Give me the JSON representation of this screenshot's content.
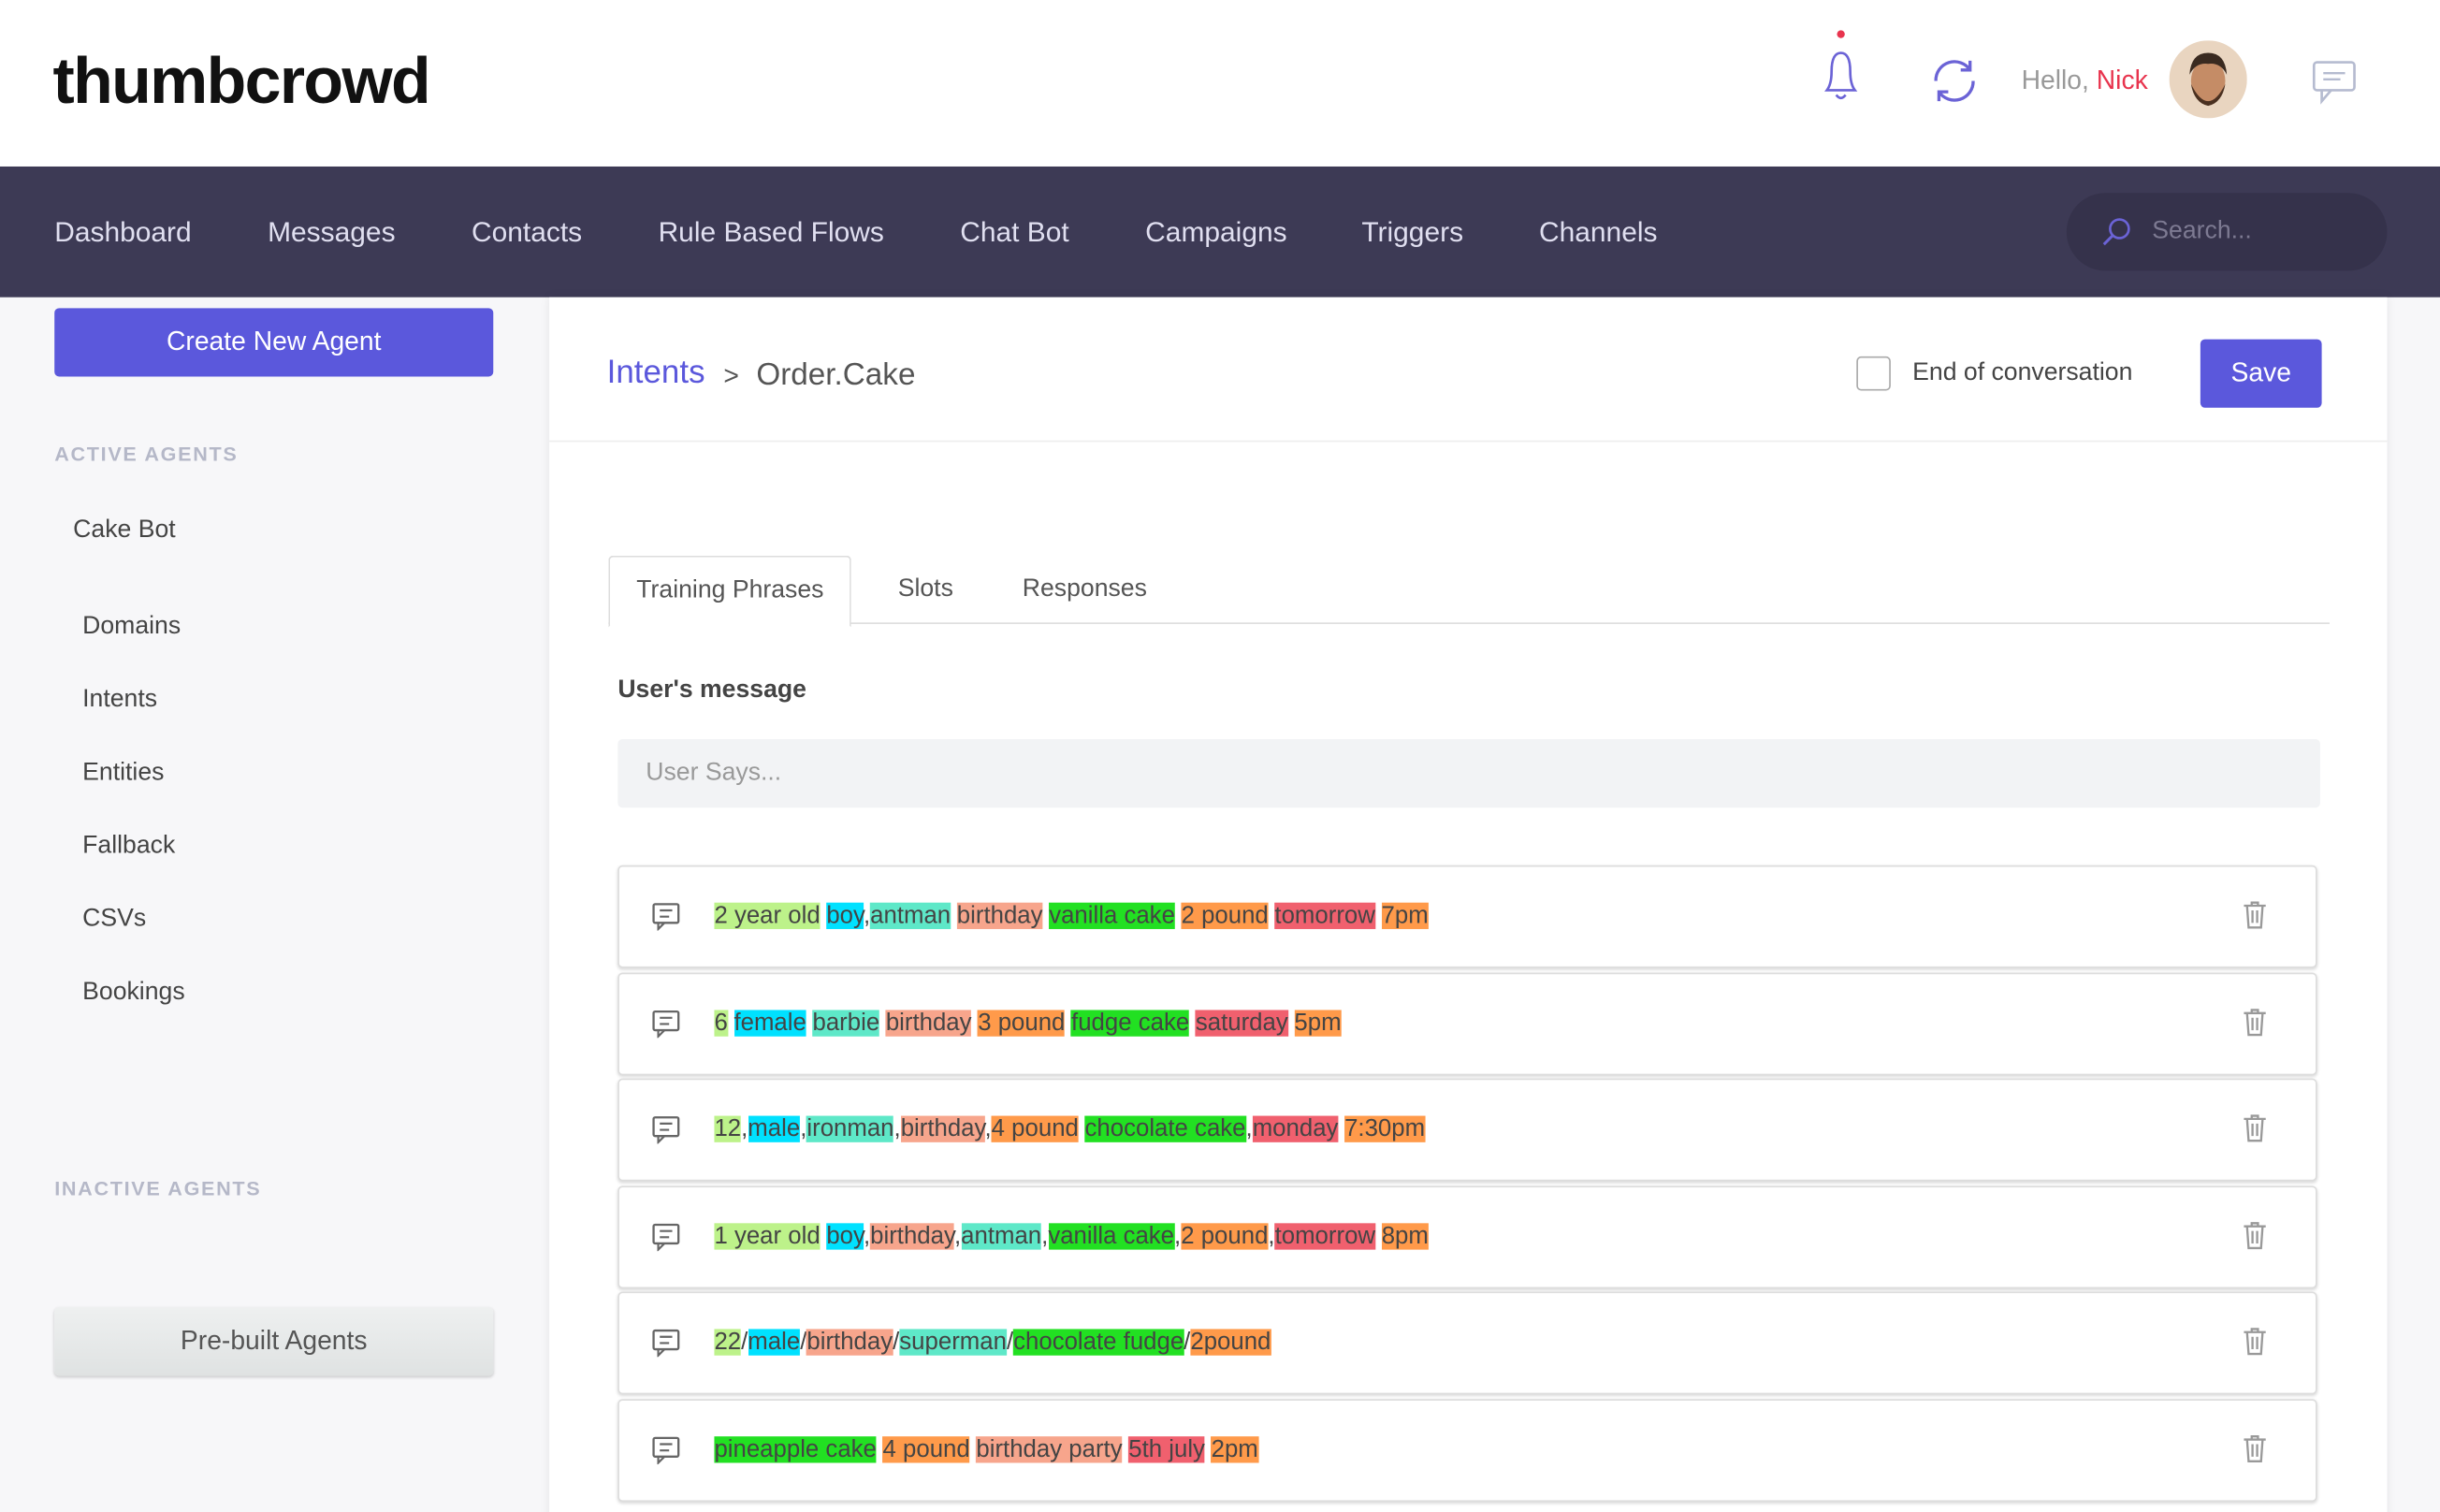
{
  "header": {
    "logo": "thumbcrowd",
    "greeting": "Hello,",
    "user": "Nick"
  },
  "nav": {
    "items": [
      "Dashboard",
      "Messages",
      "Contacts",
      "Rule Based Flows",
      "Chat Bot",
      "Campaigns",
      "Triggers",
      "Channels"
    ],
    "search_placeholder": "Search..."
  },
  "sidebar": {
    "create_button": "Create New Agent",
    "active_heading": "ACTIVE AGENTS",
    "agent": "Cake Bot",
    "menu": [
      "Domains",
      "Intents",
      "Entities",
      "Fallback",
      "CSVs",
      "Bookings"
    ],
    "inactive_heading": "INACTIVE AGENTS",
    "prebuilt_button": "Pre-built Agents"
  },
  "editor": {
    "breadcrumb_root": "Intents",
    "breadcrumb_separator": ">",
    "breadcrumb_current": "Order.Cake",
    "end_label": "End of conversation",
    "save": "Save",
    "tabs": [
      "Training Phrases",
      "Slots",
      "Responses"
    ],
    "active_tab": 0,
    "section_label": "User's message",
    "input_placeholder": "User Says...",
    "phrases": [
      {
        "segments": [
          {
            "text": "2 year old",
            "color": "#bdf28a"
          },
          {
            "text": "boy",
            "color": "#00e1ff",
            "sep": ","
          },
          {
            "text": "antman",
            "color": "#5ee8c8"
          },
          {
            "text": "birthday",
            "color": "#f7a58c"
          },
          {
            "text": "vanilla cake",
            "color": "#22e022"
          },
          {
            "text": "2 pound",
            "color": "#ff9a4a"
          },
          {
            "text": "tomorrow",
            "color": "#f0606e"
          },
          {
            "text": "7pm",
            "color": "#ff9a4a"
          }
        ]
      },
      {
        "segments": [
          {
            "text": "6",
            "color": "#bdf28a"
          },
          {
            "text": "female",
            "color": "#00e1ff"
          },
          {
            "text": "barbie",
            "color": "#5ee8c8"
          },
          {
            "text": "birthday",
            "color": "#f7a58c"
          },
          {
            "text": "3 pound",
            "color": "#ff9a4a"
          },
          {
            "text": "fudge cake",
            "color": "#22e022"
          },
          {
            "text": "saturday",
            "color": "#f0606e"
          },
          {
            "text": "5pm",
            "color": "#ff9a4a"
          }
        ]
      },
      {
        "segments": [
          {
            "text": "12",
            "color": "#bdf28a",
            "sep": ","
          },
          {
            "text": "male",
            "color": "#00e1ff",
            "sep": ","
          },
          {
            "text": "ironman",
            "color": "#5ee8c8",
            "sep": ","
          },
          {
            "text": "birthday",
            "color": "#f7a58c",
            "sep": ","
          },
          {
            "text": "4 pound",
            "color": "#ff9a4a"
          },
          {
            "text": "chocolate cake",
            "color": "#22e022",
            "sep": ","
          },
          {
            "text": "monday",
            "color": "#f0606e"
          },
          {
            "text": "7:30pm",
            "color": "#ff9a4a"
          }
        ]
      },
      {
        "segments": [
          {
            "text": "1 year old",
            "color": "#bdf28a"
          },
          {
            "text": "boy",
            "color": "#00e1ff",
            "sep": ","
          },
          {
            "text": "birthday",
            "color": "#f7a58c",
            "sep": ","
          },
          {
            "text": "antman",
            "color": "#5ee8c8",
            "sep": ","
          },
          {
            "text": "vanilla cake",
            "color": "#22e022",
            "sep": ","
          },
          {
            "text": "2 pound",
            "color": "#ff9a4a",
            "sep": ","
          },
          {
            "text": "tomorrow",
            "color": "#f0606e"
          },
          {
            "text": "8pm",
            "color": "#ff9a4a"
          }
        ]
      },
      {
        "segments": [
          {
            "text": "22",
            "color": "#bdf28a",
            "sep": "/"
          },
          {
            "text": "male",
            "color": "#00e1ff",
            "sep": "/"
          },
          {
            "text": "birthday",
            "color": "#f7a58c",
            "sep": "/"
          },
          {
            "text": "superman",
            "color": "#5ee8c8",
            "sep": "/"
          },
          {
            "text": "chocolate fudge",
            "color": "#22e022",
            "sep": "/"
          },
          {
            "text": "2pound",
            "color": "#ff9a4a"
          }
        ]
      },
      {
        "segments": [
          {
            "text": "pineapple cake",
            "color": "#22e022"
          },
          {
            "text": "4 pound",
            "color": "#ff9a4a"
          },
          {
            "text": "birthday party",
            "color": "#f7a58c"
          },
          {
            "text": "5th july",
            "color": "#f0606e"
          },
          {
            "text": "2pm",
            "color": "#ff9a4a"
          }
        ]
      }
    ]
  }
}
